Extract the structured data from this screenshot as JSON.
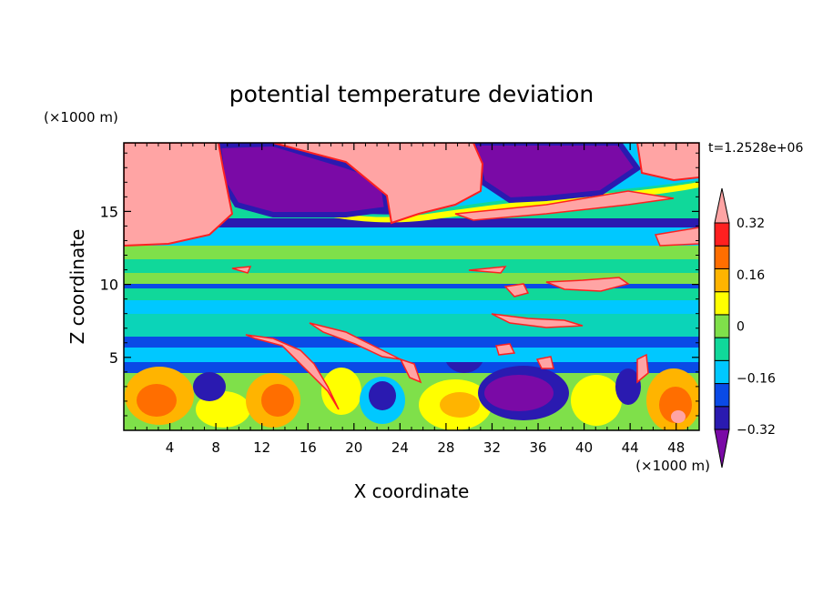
{
  "chart_data": {
    "type": "heatmap",
    "title": "potential temperature deviation",
    "xlabel": "X coordinate",
    "ylabel": "Z coordinate",
    "x_unit": "(×1000 m)",
    "y_unit": "(×1000 m)",
    "time_label": "t=1.2528e+06",
    "xlim": [
      0,
      50
    ],
    "ylim": [
      0,
      19.7
    ],
    "x_ticks": [
      4,
      8,
      12,
      16,
      20,
      24,
      28,
      32,
      36,
      40,
      44,
      48
    ],
    "x_tick_labels": [
      "4",
      "8",
      "12",
      "16",
      "20",
      "24",
      "28",
      "32",
      "36",
      "40",
      "44",
      "48"
    ],
    "y_ticks": [
      5,
      10,
      15
    ],
    "y_tick_labels": [
      "5",
      "10",
      "15"
    ],
    "colorbar": {
      "levels": [
        -0.4,
        -0.32,
        -0.24,
        -0.16,
        -0.08,
        0,
        0.08,
        0.16,
        0.24,
        0.32,
        0.4
      ],
      "labeled_levels": [
        0.32,
        0.16,
        0,
        -0.16,
        -0.32
      ],
      "labels": [
        "0.32",
        "0.16",
        "0",
        "−0.16",
        "−0.32"
      ],
      "colors": [
        "#7a0aa6",
        "#2a1ab0",
        "#0a4ae6",
        "#00c8ff",
        "#10d89a",
        "#7fe04a",
        "#ffff00",
        "#ffb400",
        "#ff6e00",
        "#ff2020",
        "#ffa4a4"
      ],
      "extends": "both"
    },
    "fields_approx": [
      {
        "desc": "positive anomaly",
        "color": "#ffa4a4",
        "x": [
          0,
          9
        ],
        "y": [
          13,
          19.7
        ]
      },
      {
        "desc": "negative anomaly",
        "color": "#7a0aa6",
        "x": [
          10,
          23
        ],
        "y": [
          15.5,
          19.7
        ]
      },
      {
        "desc": "positive anomaly",
        "color": "#ffa4a4",
        "x": [
          23,
          31
        ],
        "y": [
          14.5,
          19.7
        ]
      },
      {
        "desc": "negative anomaly",
        "color": "#7a0aa6",
        "x": [
          30,
          44
        ],
        "y": [
          15.8,
          19.7
        ]
      },
      {
        "desc": "positive anomaly",
        "color": "#ffa4a4",
        "x": [
          45,
          50
        ],
        "y": [
          16.5,
          19.7
        ]
      },
      {
        "desc": "negative anomaly",
        "color": "#7a0aa6",
        "x": [
          30,
          38
        ],
        "y": [
          1.5,
          4.5
        ]
      }
    ]
  }
}
